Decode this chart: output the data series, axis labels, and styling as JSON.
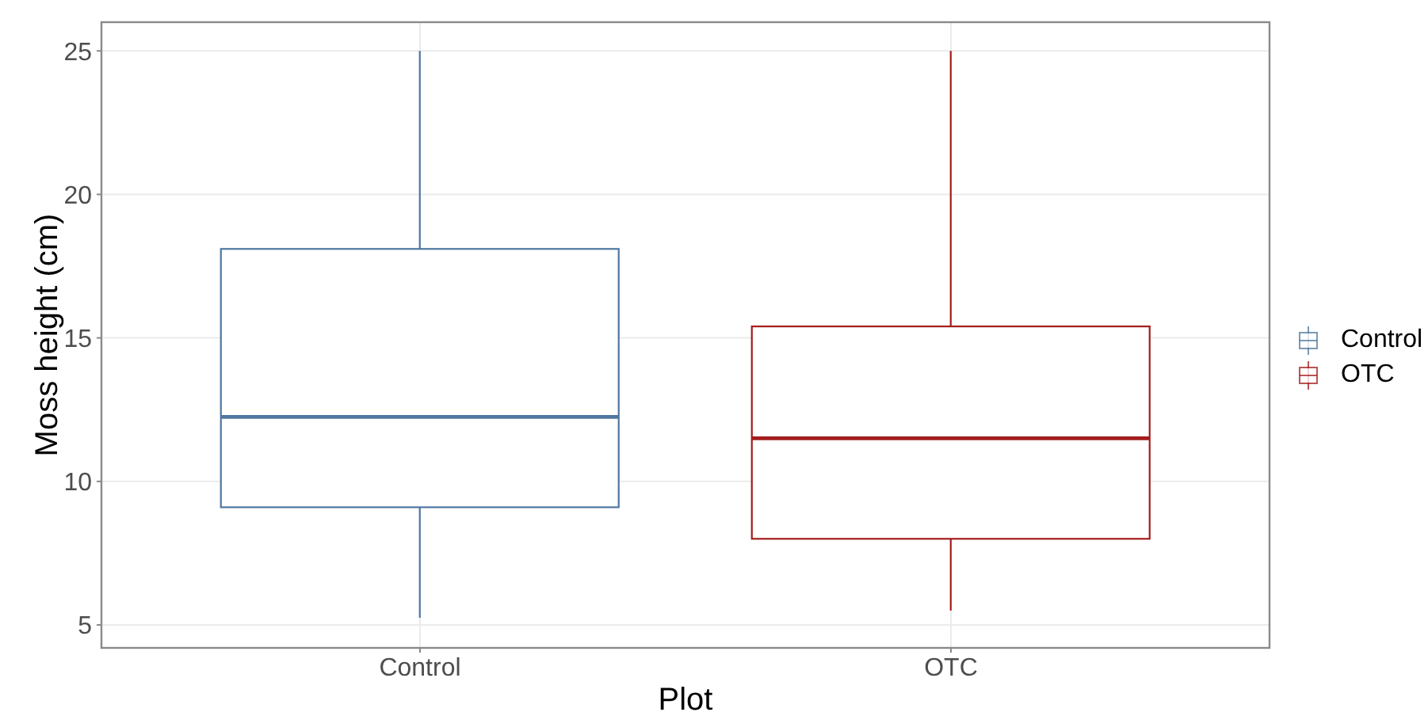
{
  "chart_data": {
    "type": "box",
    "categories": [
      "Control",
      "OTC"
    ],
    "xlabel": "Plot",
    "ylabel": "Moss height (cm)",
    "ylim": [
      4.2,
      26
    ],
    "yticks": [
      5,
      10,
      15,
      20,
      25
    ],
    "grid": true,
    "legend": "right",
    "series": [
      {
        "name": "Control",
        "color": "#4f77a0",
        "boxes": [
          {
            "low": 5.25,
            "q1": 9.1,
            "median": 12.25,
            "q3": 18.1,
            "high": 25
          },
          null
        ]
      },
      {
        "name": "OTC",
        "color": "#a31d1d",
        "boxes": [
          null,
          {
            "low": 5.5,
            "q1": 8,
            "median": 11.5,
            "q3": 15.4,
            "high": 25
          }
        ]
      }
    ]
  }
}
